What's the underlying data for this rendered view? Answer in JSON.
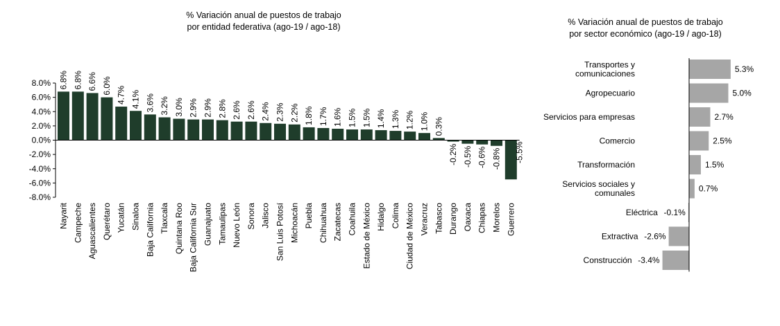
{
  "chart_data": [
    {
      "type": "bar",
      "title": "% Variación anual de puestos de trabajo",
      "subtitle": "por entidad federativa (ago-19 / ago-18)",
      "ylim": [
        -8,
        8
      ],
      "ytick_labels": [
        "8.0%",
        "6.0%",
        "4.0%",
        "2.0%",
        "0.0%",
        "-2.0%",
        "-4.0%",
        "-6.0%",
        "-8.0%"
      ],
      "categories": [
        "Nayarit",
        "Campeche",
        "Aguascalientes",
        "Querétaro",
        "Yucatán",
        "Sinaloa",
        "Baja California",
        "Tlaxcala",
        "Quintana Roo",
        "Baja California Sur",
        "Guanajuato",
        "Tamaulipas",
        "Nuevo León",
        "Sonora",
        "Jalisco",
        "San Luis Potosí",
        "Michoacán",
        "Puebla",
        "Chihuahua",
        "Zacatecas",
        "Coahuila",
        "Estado de México",
        "Hidalgo",
        "Colima",
        "Ciudad de México",
        "Veracruz",
        "Tabasco",
        "Durango",
        "Oaxaca",
        "Chiapas",
        "Morelos",
        "Guerrero"
      ],
      "values": [
        6.8,
        6.8,
        6.6,
        6.0,
        4.7,
        4.1,
        3.6,
        3.2,
        3.0,
        2.9,
        2.9,
        2.8,
        2.6,
        2.6,
        2.4,
        2.3,
        2.2,
        1.8,
        1.7,
        1.6,
        1.5,
        1.5,
        1.4,
        1.3,
        1.2,
        1.0,
        0.3,
        -0.2,
        -0.5,
        -0.6,
        -0.8,
        -5.5
      ],
      "value_labels": [
        "6.8%",
        "6.8%",
        "6.6%",
        "6.0%",
        "4.7%",
        "4.1%",
        "3.6%",
        "3.2%",
        "3.0%",
        "2.9%",
        "2.9%",
        "2.8%",
        "2.6%",
        "2.6%",
        "2.4%",
        "2.3%",
        "2.2%",
        "1.8%",
        "1.7%",
        "1.6%",
        "1.5%",
        "1.5%",
        "1.4%",
        "1.3%",
        "1.2%",
        "1.0%",
        "0.3%",
        "-0.2%",
        "-0.5%",
        "-0.6%",
        "-0.8%",
        "-5.5%"
      ],
      "bar_color": "#1f3d2b",
      "grid": false
    },
    {
      "type": "bar",
      "orientation": "horizontal",
      "title": "% Variación anual de puestos de trabajo",
      "subtitle": "por sector económico (ago-19 / ago-18)",
      "categories": [
        [
          "Transportes y",
          "comunicaciones"
        ],
        [
          "Agropecuario"
        ],
        [
          "Servicios para empresas"
        ],
        [
          "Comercio"
        ],
        [
          "Transformación"
        ],
        [
          "Servicios sociales y",
          "comunales"
        ],
        [
          "Eléctrica"
        ],
        [
          "Extractiva"
        ],
        [
          "Construcción"
        ]
      ],
      "values": [
        5.3,
        5.0,
        2.7,
        2.5,
        1.5,
        0.7,
        -0.1,
        -2.6,
        -3.4
      ],
      "value_labels": [
        "5.3%",
        "5.0%",
        "2.7%",
        "2.5%",
        "1.5%",
        "0.7%",
        "-0.1%",
        "-2.6%",
        "-3.4%"
      ],
      "bar_color": "#a6a6a6",
      "grid": false
    }
  ]
}
